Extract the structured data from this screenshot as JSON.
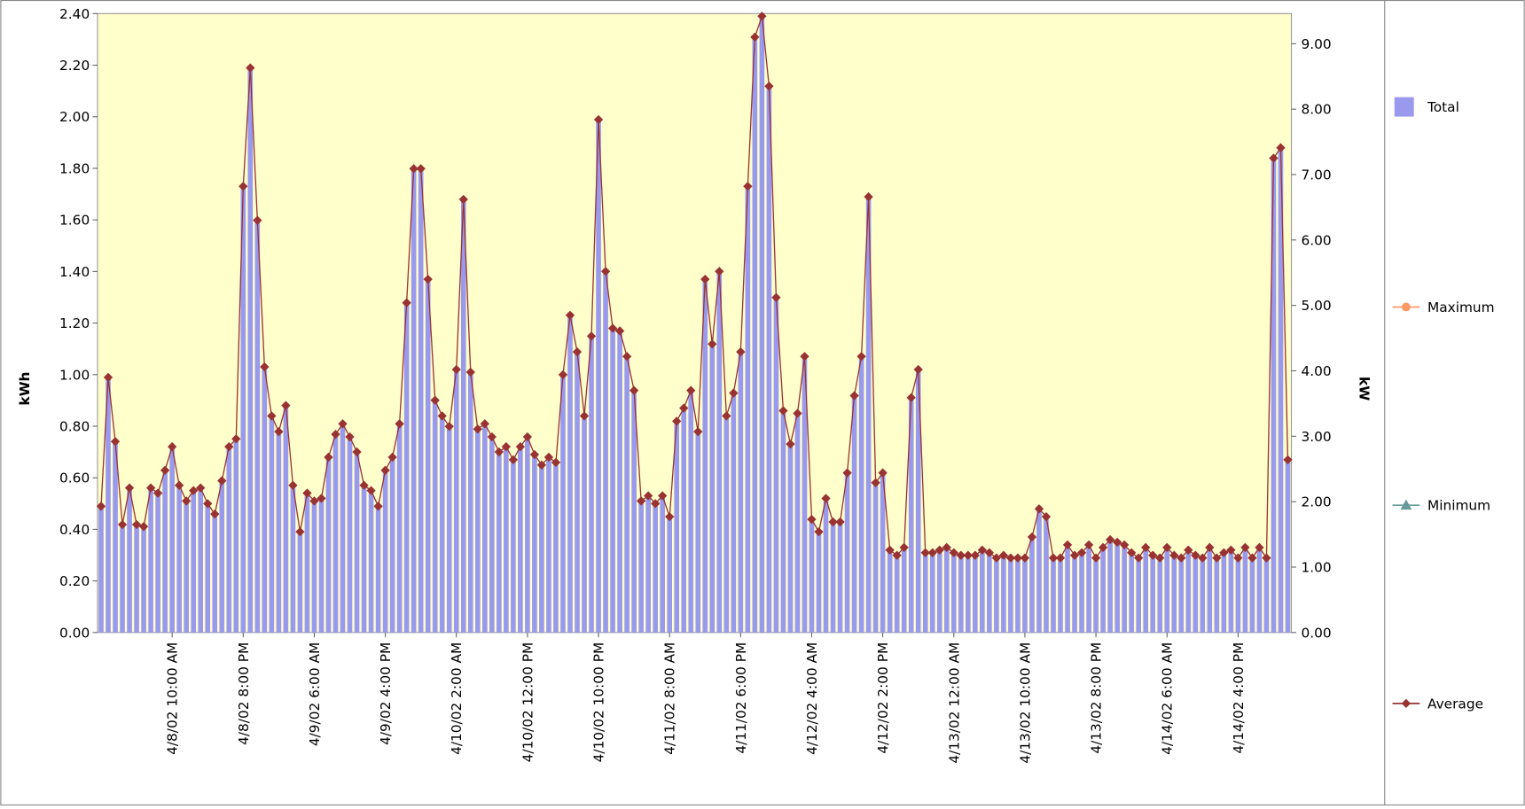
{
  "chart_data": {
    "type": "bar",
    "y_label": "kWh",
    "y2_label": "kW",
    "ylim": [
      0,
      2.4
    ],
    "yticks": [
      {
        "value": 0,
        "label": "0.00"
      },
      {
        "value": 0.2,
        "label": "0.20"
      },
      {
        "value": 0.4,
        "label": "0.40"
      },
      {
        "value": 0.6,
        "label": "0.60"
      },
      {
        "value": 0.8,
        "label": "0.80"
      },
      {
        "value": 1,
        "label": "1.00"
      },
      {
        "value": 1.2,
        "label": "1.20"
      },
      {
        "value": 1.4,
        "label": "1.40"
      },
      {
        "value": 1.6,
        "label": "1.60"
      },
      {
        "value": 1.8,
        "label": "1.80"
      },
      {
        "value": 2,
        "label": "2.00"
      },
      {
        "value": 2.2,
        "label": "2.20"
      },
      {
        "value": 2.4,
        "label": "2.40"
      }
    ],
    "y2lim": [
      0,
      9.46
    ],
    "y2ticks": [
      {
        "value": 0,
        "label": "0.00"
      },
      {
        "value": 1,
        "label": "1.00"
      },
      {
        "value": 2,
        "label": "2.00"
      },
      {
        "value": 3,
        "label": "3.00"
      },
      {
        "value": 4,
        "label": "4.00"
      },
      {
        "value": 5,
        "label": "5.00"
      },
      {
        "value": 6,
        "label": "6.00"
      },
      {
        "value": 7,
        "label": "7.00"
      },
      {
        "value": 8,
        "label": "8.00"
      },
      {
        "value": 9,
        "label": "9.00"
      }
    ],
    "categories": [
      null,
      null,
      null,
      null,
      null,
      null,
      null,
      null,
      null,
      null,
      "4/8/02 10:00 AM",
      null,
      null,
      null,
      null,
      null,
      null,
      null,
      null,
      null,
      "4/8/02 8:00 PM",
      null,
      null,
      null,
      null,
      null,
      null,
      null,
      null,
      null,
      "4/9/02 6:00 AM",
      null,
      null,
      null,
      null,
      null,
      null,
      null,
      null,
      null,
      "4/9/02 4:00 PM",
      null,
      null,
      null,
      null,
      null,
      null,
      null,
      null,
      null,
      "4/10/02 2:00 AM",
      null,
      null,
      null,
      null,
      null,
      null,
      null,
      null,
      null,
      "4/10/02 12:00 PM",
      null,
      null,
      null,
      null,
      null,
      null,
      null,
      null,
      null,
      "4/10/02 10:00 PM",
      null,
      null,
      null,
      null,
      null,
      null,
      null,
      null,
      null,
      "4/11/02 8:00 AM",
      null,
      null,
      null,
      null,
      null,
      null,
      null,
      null,
      null,
      "4/11/02 6:00 PM",
      null,
      null,
      null,
      null,
      null,
      null,
      null,
      null,
      null,
      "4/12/02 4:00 AM",
      null,
      null,
      null,
      null,
      null,
      null,
      null,
      null,
      null,
      "4/12/02 2:00 PM",
      null,
      null,
      null,
      null,
      null,
      null,
      null,
      null,
      null,
      "4/13/02 12:00 AM",
      null,
      null,
      null,
      null,
      null,
      null,
      null,
      null,
      null,
      "4/13/02 10:00 AM",
      null,
      null,
      null,
      null,
      null,
      null,
      null,
      null,
      null,
      "4/13/02 8:00 PM",
      null,
      null,
      null,
      null,
      null,
      null,
      null,
      null,
      null,
      "4/14/02 6:00 AM",
      null,
      null,
      null,
      null,
      null,
      null,
      null,
      null,
      null,
      "4/14/02 4:00 PM",
      null,
      null,
      null,
      null,
      null,
      null,
      null
    ],
    "series": [
      {
        "name": "Total",
        "type": "bar",
        "axis": "y",
        "color": "#9999ee",
        "values": [
          0.49,
          0.99,
          0.74,
          0.42,
          0.56,
          0.42,
          0.41,
          0.56,
          0.54,
          0.63,
          0.72,
          0.57,
          0.51,
          0.55,
          0.56,
          0.5,
          0.46,
          0.59,
          0.72,
          0.75,
          1.73,
          2.19,
          1.6,
          1.03,
          0.84,
          0.78,
          0.88,
          0.57,
          0.39,
          0.54,
          0.51,
          0.52,
          0.68,
          0.77,
          0.81,
          0.76,
          0.7,
          0.57,
          0.55,
          0.49,
          0.63,
          0.68,
          0.81,
          1.28,
          1.8,
          1.8,
          1.37,
          0.9,
          0.84,
          0.8,
          1.02,
          1.68,
          1.01,
          0.79,
          0.81,
          0.76,
          0.7,
          0.72,
          0.67,
          0.72,
          0.76,
          0.69,
          0.65,
          0.68,
          0.66,
          1.0,
          1.23,
          1.09,
          0.84,
          1.15,
          1.99,
          1.4,
          1.18,
          1.17,
          1.07,
          0.94,
          0.51,
          0.53,
          0.5,
          0.53,
          0.45,
          0.82,
          0.87,
          0.94,
          0.78,
          1.37,
          1.12,
          1.4,
          0.84,
          0.93,
          1.09,
          1.73,
          2.31,
          2.39,
          2.12,
          1.3,
          0.86,
          0.73,
          0.85,
          1.07,
          0.44,
          0.39,
          0.52,
          0.43,
          0.43,
          0.62,
          0.92,
          1.07,
          1.69,
          0.58,
          0.62,
          0.32,
          0.3,
          0.33,
          0.91,
          1.02,
          0.31,
          0.31,
          0.32,
          0.33,
          0.31,
          0.3,
          0.3,
          0.3,
          0.32,
          0.31,
          0.29,
          0.3,
          0.29,
          0.29,
          0.29,
          0.37,
          0.48,
          0.45,
          0.29,
          0.29,
          0.34,
          0.3,
          0.31,
          0.34,
          0.29,
          0.33,
          0.36,
          0.35,
          0.34,
          0.31,
          0.29,
          0.33,
          0.3,
          0.29,
          0.33,
          0.3,
          0.29,
          0.32,
          0.3,
          0.29,
          0.33,
          0.29,
          0.31,
          0.32,
          0.29,
          0.33,
          0.29,
          0.33,
          0.29,
          1.84,
          1.88,
          0.67
        ]
      },
      {
        "name": "Maximum",
        "type": "line",
        "axis": "y2",
        "color": "#ff9966",
        "marker": "circle",
        "values": [
          null,
          null,
          null,
          null,
          null,
          null,
          null,
          null,
          null,
          null,
          null,
          null,
          null,
          null,
          null,
          null,
          null,
          null,
          null,
          null,
          null,
          null,
          null,
          null,
          null,
          null,
          null,
          null,
          null,
          null,
          null,
          null,
          null,
          null,
          null,
          null,
          null,
          null,
          null,
          null,
          null,
          null,
          null,
          null,
          null,
          null,
          null,
          null,
          null,
          null,
          null,
          null,
          null,
          null,
          null,
          null,
          null,
          null,
          null,
          null,
          null,
          null,
          null,
          null,
          null,
          null,
          null,
          null,
          null,
          null,
          null,
          null,
          null,
          null,
          null,
          null,
          null,
          null,
          null,
          null,
          null,
          null,
          null,
          null,
          null,
          null,
          null,
          null,
          null,
          null,
          null,
          null,
          null,
          null,
          null,
          null,
          null,
          null,
          null,
          null,
          null,
          null,
          null,
          null,
          null,
          null,
          null,
          null,
          null,
          null,
          null,
          null,
          null,
          null,
          null,
          null,
          null,
          null,
          null,
          null,
          null,
          null,
          null,
          null,
          null,
          null,
          null,
          null,
          null,
          null,
          null,
          null,
          null,
          null,
          null,
          null,
          null,
          null,
          null,
          null,
          null,
          null,
          null,
          null,
          null,
          null,
          null,
          null,
          null,
          null,
          null,
          null,
          null,
          null,
          null,
          null,
          null,
          null,
          null,
          null,
          null,
          null,
          null,
          null,
          null,
          null,
          null,
          null
        ]
      },
      {
        "name": "Minimum",
        "type": "line",
        "axis": "y2",
        "color": "#669999",
        "marker": "triangle",
        "values": [
          null,
          null,
          null,
          null,
          null,
          null,
          null,
          null,
          null,
          null,
          null,
          null,
          null,
          null,
          null,
          null,
          null,
          null,
          null,
          null,
          null,
          null,
          null,
          null,
          null,
          null,
          null,
          null,
          null,
          null,
          null,
          null,
          null,
          null,
          null,
          null,
          null,
          null,
          null,
          null,
          null,
          null,
          null,
          null,
          null,
          null,
          null,
          null,
          null,
          null,
          null,
          null,
          null,
          null,
          null,
          null,
          null,
          null,
          null,
          null,
          null,
          null,
          null,
          null,
          null,
          null,
          null,
          null,
          null,
          null,
          null,
          null,
          null,
          null,
          null,
          null,
          null,
          null,
          null,
          null,
          null,
          null,
          null,
          null,
          null,
          null,
          null,
          null,
          null,
          null,
          null,
          null,
          null,
          null,
          null,
          null,
          null,
          null,
          null,
          null,
          null,
          null,
          null,
          null,
          null,
          null,
          null,
          null,
          null,
          null,
          null,
          null,
          null,
          null,
          null,
          null,
          null,
          null,
          null,
          null,
          null,
          null,
          null,
          null,
          null,
          null,
          null,
          null,
          null,
          null,
          null,
          null,
          null,
          null,
          null,
          null,
          null,
          null,
          null,
          null,
          null,
          null,
          null,
          null,
          null,
          null,
          null,
          null,
          null,
          null,
          null,
          null,
          null,
          null,
          null,
          null,
          null,
          null,
          null,
          null,
          null,
          null,
          null,
          null,
          null,
          null,
          null,
          null
        ]
      },
      {
        "name": "Average",
        "type": "line",
        "axis": "y2",
        "color": "#993333",
        "marker": "diamond",
        "values": [
          1.93,
          3.9,
          2.92,
          1.65,
          2.21,
          1.65,
          1.62,
          2.21,
          2.13,
          2.48,
          2.84,
          2.25,
          2.01,
          2.17,
          2.21,
          1.97,
          1.81,
          2.32,
          2.84,
          2.96,
          6.82,
          8.63,
          6.3,
          4.06,
          3.31,
          3.07,
          3.47,
          2.25,
          1.54,
          2.13,
          2.01,
          2.05,
          2.68,
          3.03,
          3.19,
          2.99,
          2.76,
          2.25,
          2.17,
          1.93,
          2.48,
          2.68,
          3.19,
          5.04,
          7.09,
          7.09,
          5.4,
          3.55,
          3.31,
          3.15,
          4.02,
          6.62,
          3.98,
          3.11,
          3.19,
          2.99,
          2.76,
          2.84,
          2.64,
          2.84,
          2.99,
          2.72,
          2.56,
          2.68,
          2.6,
          3.94,
          4.85,
          4.29,
          3.31,
          4.53,
          7.84,
          5.52,
          4.65,
          4.61,
          4.22,
          3.7,
          2.01,
          2.09,
          1.97,
          2.09,
          1.77,
          3.23,
          3.43,
          3.7,
          3.07,
          5.4,
          4.41,
          5.52,
          3.31,
          3.66,
          4.29,
          6.82,
          9.1,
          9.42,
          8.35,
          5.12,
          3.39,
          2.88,
          3.35,
          4.22,
          1.73,
          1.54,
          2.05,
          1.69,
          1.69,
          2.44,
          3.62,
          4.22,
          6.66,
          2.29,
          2.44,
          1.26,
          1.18,
          1.3,
          3.59,
          4.02,
          1.22,
          1.22,
          1.26,
          1.3,
          1.22,
          1.18,
          1.18,
          1.18,
          1.26,
          1.22,
          1.14,
          1.18,
          1.14,
          1.14,
          1.14,
          1.46,
          1.89,
          1.77,
          1.14,
          1.14,
          1.34,
          1.18,
          1.22,
          1.34,
          1.14,
          1.3,
          1.42,
          1.38,
          1.34,
          1.22,
          1.14,
          1.3,
          1.18,
          1.14,
          1.3,
          1.18,
          1.14,
          1.26,
          1.18,
          1.14,
          1.3,
          1.14,
          1.22,
          1.26,
          1.14,
          1.3,
          1.14,
          1.3,
          1.14,
          7.25,
          7.41,
          2.64
        ]
      }
    ],
    "plot_background": "#ffffcc",
    "legend": "right"
  }
}
